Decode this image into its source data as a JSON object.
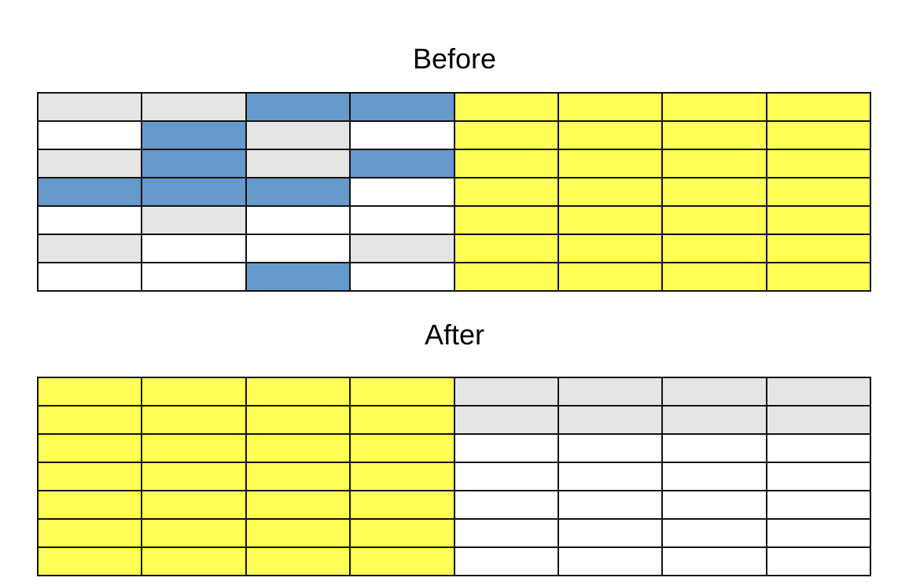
{
  "colors": {
    "g": "#e5e5e5",
    "b": "#6699cc",
    "w": "#ffffff",
    "y": "#ffff55"
  },
  "before": {
    "title": "Before",
    "rows": [
      [
        "g",
        "g",
        "b",
        "b",
        "y",
        "y",
        "y",
        "y"
      ],
      [
        "w",
        "b",
        "g",
        "w",
        "y",
        "y",
        "y",
        "y"
      ],
      [
        "g",
        "b",
        "g",
        "b",
        "y",
        "y",
        "y",
        "y"
      ],
      [
        "b",
        "b",
        "b",
        "w",
        "y",
        "y",
        "y",
        "y"
      ],
      [
        "w",
        "g",
        "w",
        "w",
        "y",
        "y",
        "y",
        "y"
      ],
      [
        "g",
        "w",
        "w",
        "g",
        "y",
        "y",
        "y",
        "y"
      ],
      [
        "w",
        "w",
        "b",
        "w",
        "y",
        "y",
        "y",
        "y"
      ]
    ]
  },
  "after": {
    "title": "After",
    "rows": [
      [
        "y",
        "y",
        "y",
        "y",
        "g",
        "g",
        "g",
        "g"
      ],
      [
        "y",
        "y",
        "y",
        "y",
        "g",
        "g",
        "g",
        "g"
      ],
      [
        "y",
        "y",
        "y",
        "y",
        "w",
        "w",
        "w",
        "w"
      ],
      [
        "y",
        "y",
        "y",
        "y",
        "w",
        "w",
        "w",
        "w"
      ],
      [
        "y",
        "y",
        "y",
        "y",
        "w",
        "w",
        "w",
        "w"
      ],
      [
        "y",
        "y",
        "y",
        "y",
        "w",
        "w",
        "w",
        "w"
      ],
      [
        "y",
        "y",
        "y",
        "y",
        "w",
        "w",
        "w",
        "w"
      ]
    ]
  }
}
